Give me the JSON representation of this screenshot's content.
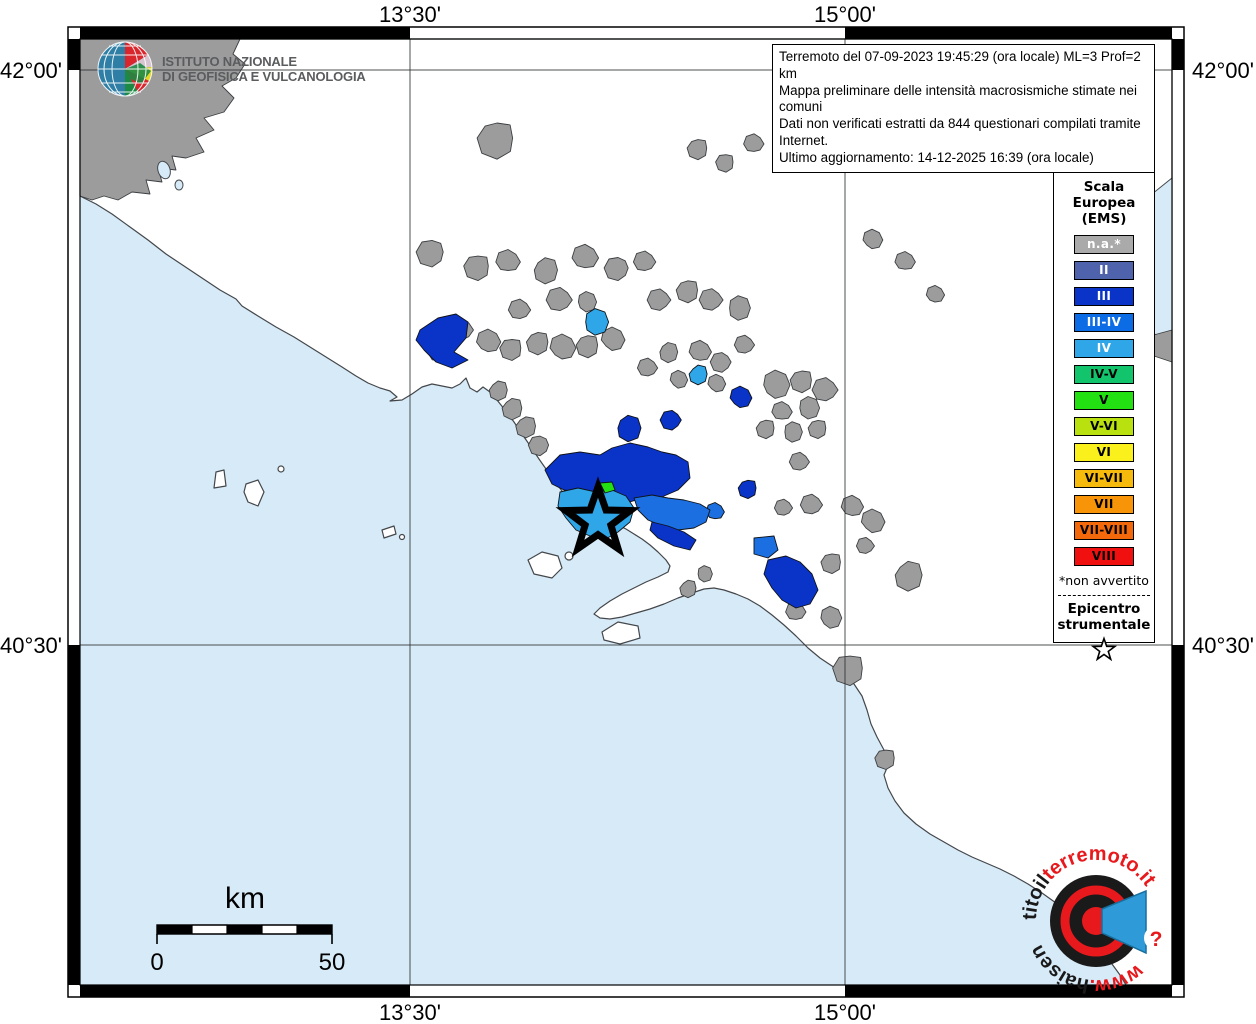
{
  "header": {
    "ingv_line1": "ISTITUTO NAZIONALE",
    "ingv_line2": "DI GEOFISICA E VULCANOLOGIA"
  },
  "info_box": {
    "line1": "Terremoto del 07-09-2023 19:45:29 (ora locale) ML=3 Prof=2 km",
    "line2": "Mappa preliminare delle intensità macrosismiche stimate nei comuni",
    "line3": "Dati non verificati estratti da 844 questionari compilati tramite Internet.",
    "line4": "Ultimo aggiornamento: 14-12-2025 16:39 (ora locale)"
  },
  "grid": {
    "lon_left": "13°30'",
    "lon_right": "15°00'",
    "lat_top": "42°00'",
    "lat_bottom": "40°30'"
  },
  "legend": {
    "title": "Scala\nEuropea\n(EMS)",
    "items": [
      {
        "label": "n.a.*",
        "bg": "#aaaaaa",
        "fg": "#ffffff"
      },
      {
        "label": "II",
        "bg": "#4f63ac",
        "fg": "#ffffff"
      },
      {
        "label": "III",
        "bg": "#0a33c8",
        "fg": "#ffffff"
      },
      {
        "label": "III-IV",
        "bg": "#0c6ce5",
        "fg": "#ffffff"
      },
      {
        "label": "IV",
        "bg": "#2fa6e8",
        "fg": "#ffffff"
      },
      {
        "label": "IV-V",
        "bg": "#12c46c",
        "fg": "#000000"
      },
      {
        "label": "V",
        "bg": "#22e012",
        "fg": "#000000"
      },
      {
        "label": "V-VI",
        "bg": "#b9e00f",
        "fg": "#000000"
      },
      {
        "label": "VI",
        "bg": "#f9f01c",
        "fg": "#000000"
      },
      {
        "label": "VI-VII",
        "bg": "#f5ba0c",
        "fg": "#000000"
      },
      {
        "label": "VII",
        "bg": "#f89408",
        "fg": "#000000"
      },
      {
        "label": "VII-VIII",
        "bg": "#f3680b",
        "fg": "#000000"
      },
      {
        "label": "VIII",
        "bg": "#f01010",
        "fg": "#000000"
      }
    ],
    "footnote": "*non avvertito",
    "epicenter_title": "Epicentro\nstrumentale"
  },
  "scale_bar": {
    "unit": "km",
    "start": "0",
    "end": "50"
  },
  "site_logo": {
    "text_www": "www.",
    "text_black_a": "haisen",
    "text_black_b": "titoil",
    "text_red": "terremoto.it",
    "question_mark": "?"
  },
  "map": {
    "sea_color": "#d7eaf8",
    "epicenter_symbol": "star"
  }
}
